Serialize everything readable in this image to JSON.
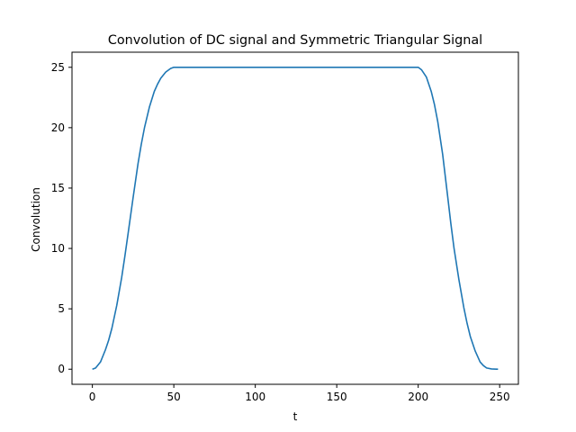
{
  "chart_data": {
    "type": "line",
    "title": "Convolution of DC signal and Symmetric Triangular Signal",
    "xlabel": "t",
    "ylabel": "Convolution",
    "xlim": [
      -12.5,
      261.5
    ],
    "ylim": [
      -1.25,
      26.25
    ],
    "xticks": [
      0,
      50,
      100,
      150,
      200,
      250
    ],
    "yticks": [
      0,
      5,
      10,
      15,
      20,
      25
    ],
    "grid": false,
    "series": [
      {
        "color": "#1f77b4",
        "x": [
          0,
          2,
          5,
          8,
          10,
          12,
          15,
          18,
          20,
          22,
          25,
          28,
          30,
          32,
          35,
          38,
          40,
          42,
          45,
          48,
          50,
          60,
          80,
          100,
          120,
          140,
          160,
          180,
          199,
          200,
          202,
          205,
          208,
          210,
          212,
          215,
          218,
          220,
          222,
          225,
          228,
          230,
          232,
          235,
          238,
          240,
          242,
          245,
          248,
          249
        ],
        "y": [
          0,
          0.1,
          0.6,
          1.6,
          2.4,
          3.4,
          5.3,
          7.6,
          9.4,
          11.3,
          14.2,
          17.0,
          18.6,
          20.0,
          21.7,
          23.0,
          23.6,
          24.1,
          24.6,
          24.9,
          25,
          25,
          25,
          25,
          25,
          25,
          25,
          25,
          25,
          25,
          24.8,
          24.2,
          23.0,
          21.9,
          20.5,
          17.8,
          14.4,
          12.1,
          10.0,
          7.4,
          5.1,
          3.8,
          2.7,
          1.5,
          0.6,
          0.3,
          0.1,
          0.02,
          0,
          0
        ]
      }
    ]
  }
}
